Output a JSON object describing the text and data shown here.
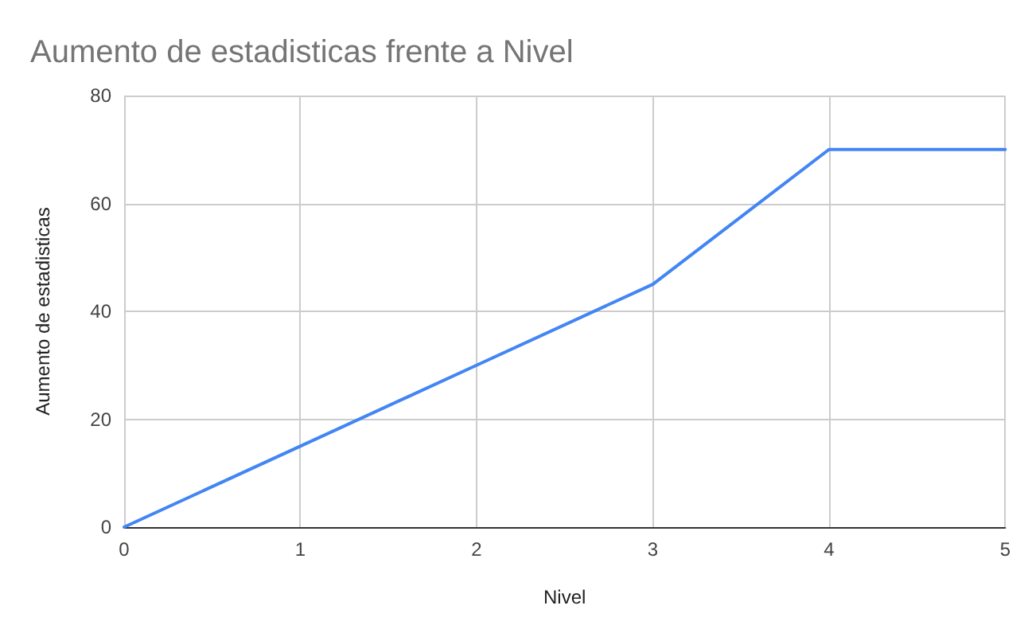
{
  "chart_data": {
    "type": "line",
    "title": "Aumento de estadisticas frente a Nivel",
    "xlabel": "Nivel",
    "ylabel": "Aumento de estadisticas",
    "x": [
      0,
      1,
      2,
      3,
      4,
      5
    ],
    "series": [
      {
        "color": "#4285f4",
        "values": [
          0,
          15,
          30,
          45,
          70,
          70
        ]
      }
    ],
    "xlim": [
      0,
      5
    ],
    "xticks": [
      0,
      1,
      2,
      3,
      4,
      5
    ],
    "ylim": [
      0,
      80
    ],
    "yticks": [
      0,
      20,
      40,
      60,
      80
    ],
    "grid": true,
    "marker": "none",
    "line_style": "solid"
  }
}
